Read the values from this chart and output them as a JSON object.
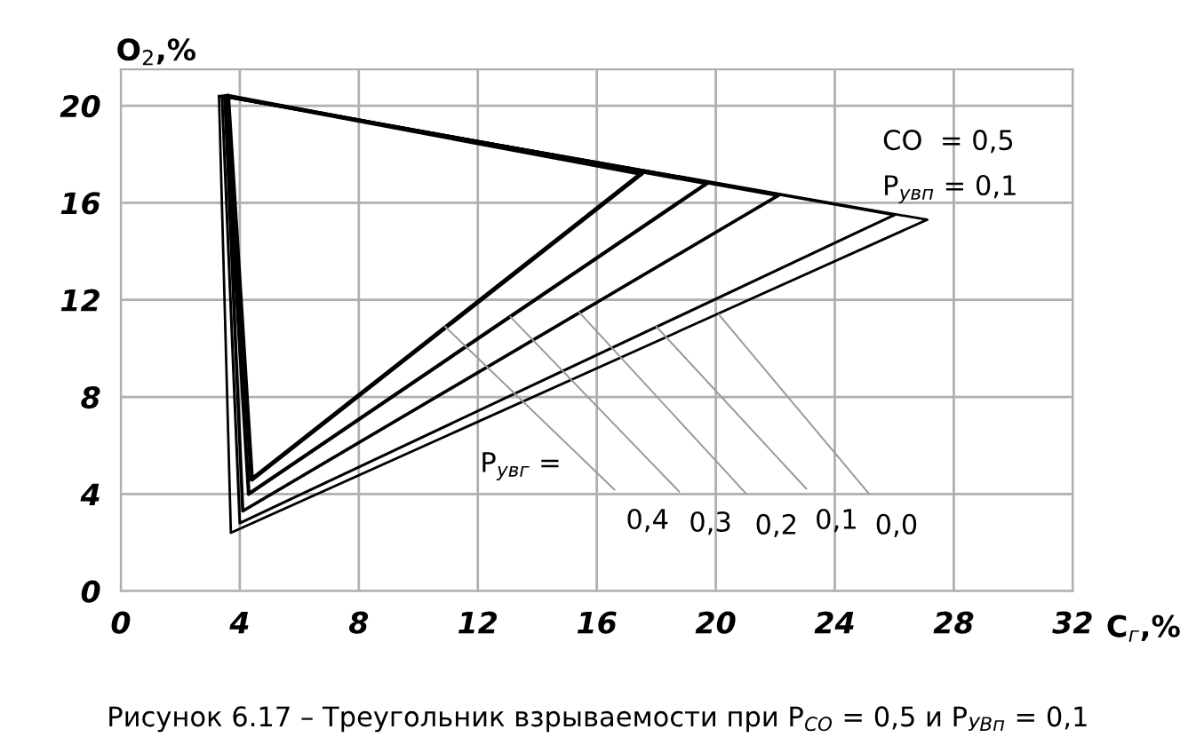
{
  "chart_data": {
    "type": "line",
    "xlabel": "C$_{г}$,%",
    "ylabel": "O$_{2}$,%",
    "xlim": [
      0,
      32
    ],
    "ylim": [
      0,
      21.5
    ],
    "xticks": [
      0,
      4,
      8,
      12,
      16,
      20,
      24,
      28,
      32
    ],
    "yticks": [
      0,
      4,
      8,
      12,
      16,
      20
    ],
    "grid": true,
    "legend": false,
    "marker": "none",
    "line_style": "solid",
    "series": [
      {
        "color": "#000000",
        "x": [
          3.6,
          4.4,
          17.5
        ],
        "values": [
          20.4,
          4.6,
          17.2
        ]
      },
      {
        "color": "#000000",
        "x": [
          3.6,
          17.5
        ],
        "values": [
          20.4,
          17.2
        ]
      },
      {
        "color": "#000000",
        "x": [
          3.5,
          4.3,
          19.7
        ],
        "values": [
          20.4,
          4.0,
          16.8
        ]
      },
      {
        "color": "#000000",
        "x": [
          3.5,
          19.7
        ],
        "values": [
          20.4,
          16.8
        ]
      },
      {
        "color": "#000000",
        "x": [
          3.5,
          4.1,
          22.1
        ],
        "values": [
          20.4,
          3.3,
          16.3
        ]
      },
      {
        "color": "#000000",
        "x": [
          3.5,
          22.1
        ],
        "values": [
          20.4,
          16.3
        ]
      },
      {
        "color": "#000000",
        "x": [
          3.4,
          4.0,
          26.0
        ],
        "values": [
          20.4,
          2.8,
          15.5
        ]
      },
      {
        "color": "#000000",
        "x": [
          3.4,
          26.0
        ],
        "values": [
          20.4,
          15.5
        ]
      },
      {
        "color": "#000000",
        "x": [
          3.3,
          3.7,
          27.1
        ],
        "values": [
          20.4,
          2.4,
          15.3
        ]
      },
      {
        "color": "#000000",
        "x": [
          3.3,
          27.1
        ],
        "values": [
          20.4,
          15.3
        ]
      }
    ],
    "annotations": [
      {
        "text": "0,4",
        "x": 10.9,
        "y": 10.9
      },
      {
        "text": "0,3",
        "x": 13.1,
        "y": 11.3
      },
      {
        "text": "0,2",
        "x": 15.4,
        "y": 11.5
      },
      {
        "text": "0,1",
        "x": 18.0,
        "y": 10.9
      },
      {
        "text": "0,0",
        "x": 20.1,
        "y": 11.4
      },
      "P$_{увг}$ =",
      "CO  = 0,5",
      "P$_{увп}$ = 0,1",
      "Рисунок 6.17 – Треугольник взрываемости при P$_{CO}$ = 0,5 и P$_{УВп}$ = 0,1"
    ]
  }
}
